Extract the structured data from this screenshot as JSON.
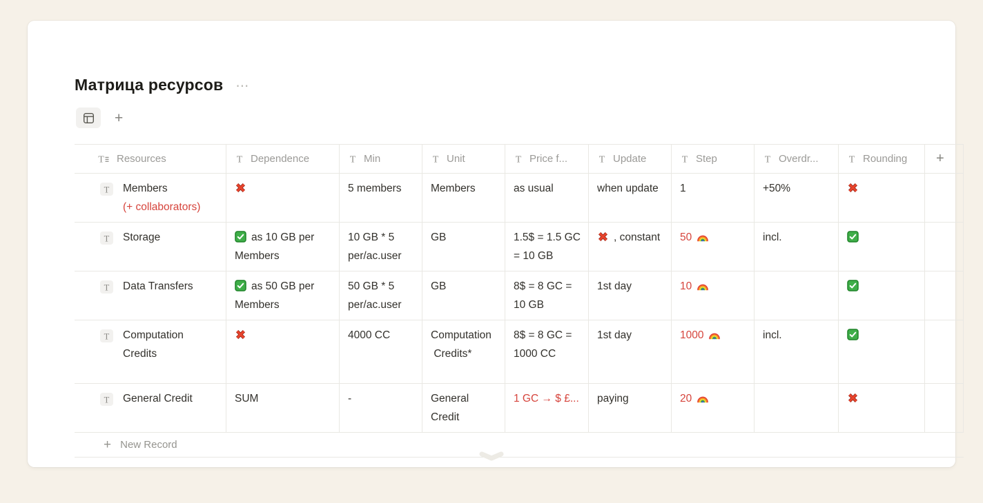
{
  "page": {
    "title": "Матрица ресурсов",
    "title_menu": "⋯"
  },
  "views_bar": {
    "add_view": "+"
  },
  "icons": {
    "table_view": "▦",
    "dots_menu": "⋯",
    "title_property": "T≡",
    "text_property": "T",
    "text_page": "T",
    "cross_mark": "❌",
    "check_box": "✅",
    "rainbow": "🌈",
    "new_record_plus": "+",
    "chevron_down": "⌄"
  },
  "colors": {
    "page_background": "#f6f1e8",
    "card_background": "#ffffff",
    "text": "#33312c",
    "muted_header": "#9b9a97",
    "red_text": "#d6443c",
    "border": "#e9e8e3",
    "check_green": "#3fae49",
    "cross_red": "#e8442c"
  },
  "table": {
    "headers": [
      {
        "label": "Resources",
        "icon": "title-property"
      },
      {
        "label": "Dependence",
        "icon": "text-property"
      },
      {
        "label": "Min",
        "icon": "text-property"
      },
      {
        "label": "Unit",
        "icon": "text-property"
      },
      {
        "label": "Price f...",
        "icon": "text-property"
      },
      {
        "label": "Update",
        "icon": "text-property"
      },
      {
        "label": "Step",
        "icon": "text-property"
      },
      {
        "label": "Overdr...",
        "icon": "text-property"
      },
      {
        "label": "Rounding",
        "icon": "text-property"
      },
      {
        "label": "+",
        "icon": null
      }
    ],
    "rows": [
      {
        "resource": {
          "icon": "text-page",
          "title": "Members",
          "subtitle": "(+ collaborators)"
        },
        "dependence": {
          "icon": "cross-mark",
          "text": ""
        },
        "min": "5 members",
        "unit": "Members",
        "price": {
          "text": "as usual",
          "red": false
        },
        "update": {
          "icon": null,
          "text": "when update"
        },
        "step": {
          "value": "1",
          "red": false,
          "icon": null
        },
        "overdraft": "+50%",
        "rounding": {
          "icon": "cross-mark"
        }
      },
      {
        "resource": {
          "icon": "text-page",
          "title": "Storage",
          "subtitle": ""
        },
        "dependence": {
          "icon": "check-box",
          "text": "as 10 GB per Members"
        },
        "min": "10 GB * 5 per/ac.user",
        "unit": "GB",
        "price": {
          "text": "1.5$ = 1.5 GC = 10 GB",
          "red": false
        },
        "update": {
          "icon": "cross-mark",
          "text": ", constant"
        },
        "step": {
          "value": "50",
          "red": true,
          "icon": "rainbow"
        },
        "overdraft": "incl.",
        "rounding": {
          "icon": "check-box"
        }
      },
      {
        "resource": {
          "icon": "text-page",
          "title": "Data Transfers",
          "subtitle": ""
        },
        "dependence": {
          "icon": "check-box",
          "text": "as 50 GB per Members"
        },
        "min": "50 GB * 5 per/ac.user",
        "unit": "GB",
        "price": {
          "text": "8$ = 8 GC = 10 GB",
          "red": false
        },
        "update": {
          "icon": null,
          "text": "1st day"
        },
        "step": {
          "value": "10",
          "red": true,
          "icon": "rainbow"
        },
        "overdraft": "",
        "rounding": {
          "icon": "check-box"
        }
      },
      {
        "resource": {
          "icon": "text-page",
          "title": "Computation Credits",
          "subtitle": ""
        },
        "dependence": {
          "icon": "cross-mark",
          "text": ""
        },
        "min": "4000 CC",
        "unit": "Computation\n Credits*",
        "price": {
          "text": "8$ = 8 GC = 1000 CC",
          "red": false
        },
        "update": {
          "icon": null,
          "text": "1st day"
        },
        "step": {
          "value": "1000",
          "red": true,
          "icon": "rainbow"
        },
        "overdraft": "incl.",
        "rounding": {
          "icon": "check-box"
        }
      },
      {
        "resource": {
          "icon": "text-page",
          "title": "General Credit",
          "subtitle": ""
        },
        "dependence": {
          "icon": null,
          "text": "SUM"
        },
        "min": "-",
        "unit": "General Credit",
        "price": {
          "text": "1 GC → $ £...",
          "red": true
        },
        "update": {
          "icon": null,
          "text": "paying"
        },
        "step": {
          "value": "20",
          "red": true,
          "icon": "rainbow"
        },
        "overdraft": "",
        "rounding": {
          "icon": "cross-mark"
        }
      }
    ],
    "new_record_label": "New Record"
  }
}
